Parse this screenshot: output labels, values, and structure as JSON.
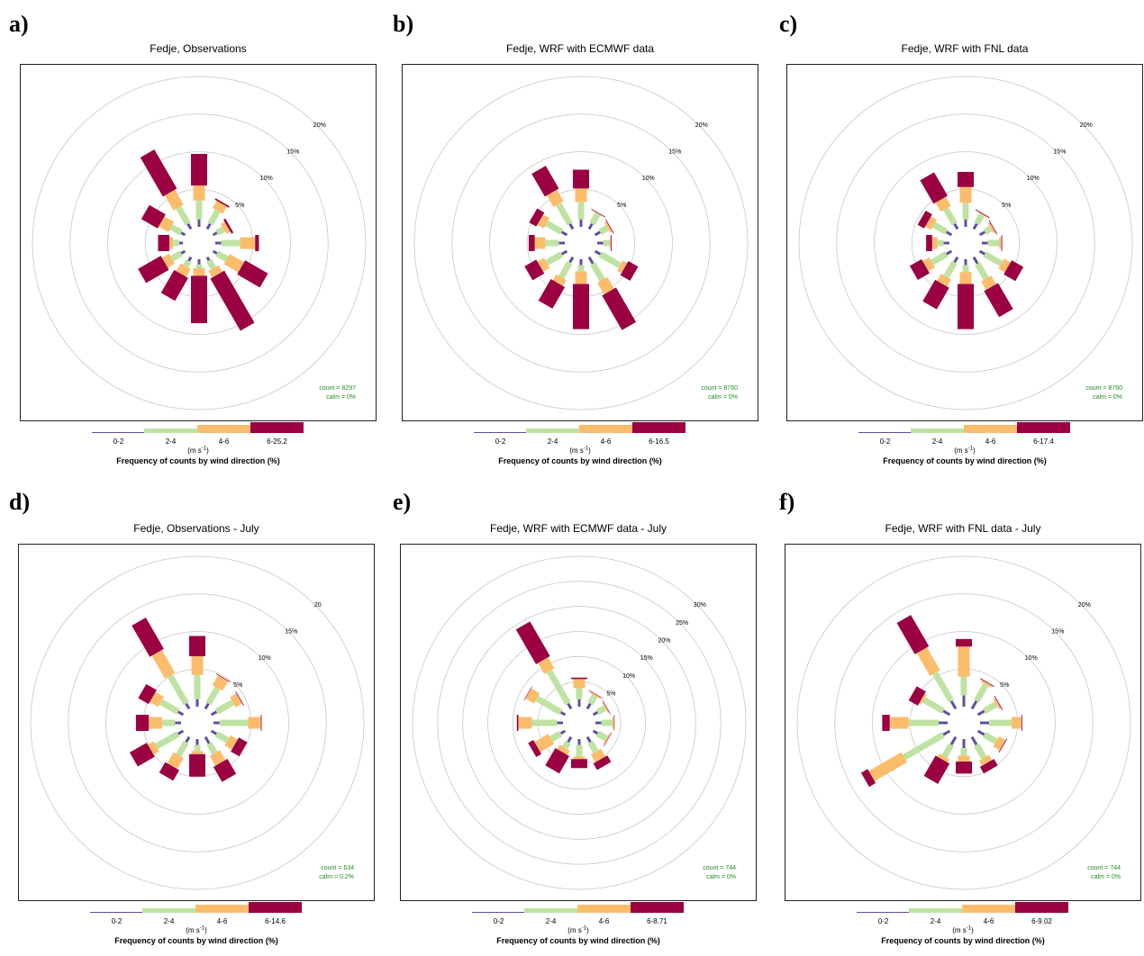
{
  "colors": {
    "band1": "#5b50a0",
    "band2": "#bfe3a3",
    "band3": "#fbbd6c",
    "band4": "#9b0042",
    "ring": "#c8c8c8",
    "stats": "#228b22"
  },
  "chart_data": [
    {
      "type": "windrose",
      "panel_label": "a)",
      "title": "Fedje, Observations",
      "rings": [
        5,
        10,
        15,
        20
      ],
      "ring_labels": [
        "5%",
        "10%",
        "15%",
        "20%"
      ],
      "max_ring": 20,
      "directions_deg": [
        0,
        30,
        60,
        90,
        120,
        150,
        180,
        210,
        240,
        270,
        300,
        330
      ],
      "bands": [
        "0-2",
        "2-4",
        "4-6",
        "6-25.2"
      ],
      "series": [
        {
          "name": "0-2",
          "values": [
            1.0,
            0.8,
            0.6,
            0.8,
            0.6,
            0.5,
            0.7,
            0.6,
            0.6,
            0.5,
            0.6,
            0.8
          ]
        },
        {
          "name": "2-4",
          "values": [
            2.5,
            2.0,
            1.0,
            2.5,
            1.5,
            1.2,
            0.5,
            0.8,
            1.4,
            0.8,
            1.5,
            2.5
          ]
        },
        {
          "name": "4-6",
          "values": [
            2.0,
            1.1,
            0.6,
            2.0,
            2.2,
            1.0,
            1.0,
            1.2,
            1.1,
            0.5,
            1.5,
            2.3
          ]
        },
        {
          "name": "6-25.2",
          "values": [
            4.2,
            0.2,
            0.3,
            0.5,
            3.5,
            8.0,
            6.3,
            3.5,
            3.5,
            1.5,
            2.5,
            6.0
          ]
        }
      ],
      "count_label": "count = 8297",
      "calm_label": "calm = 0%",
      "unit_label": "(m s",
      "unit_sup": "-1",
      "unit_close": ")",
      "footer": "Frequency of counts by wind direction (%)"
    },
    {
      "type": "windrose",
      "panel_label": "b)",
      "title": "Fedje, WRF with ECMWF data",
      "rings": [
        5,
        10,
        15,
        20
      ],
      "ring_labels": [
        "5%",
        "10%",
        "15%",
        "20%"
      ],
      "max_ring": 20,
      "directions_deg": [
        0,
        30,
        60,
        90,
        120,
        150,
        180,
        210,
        240,
        270,
        300,
        330
      ],
      "bands": [
        "0-2",
        "2-4",
        "4-6",
        "6-16.5"
      ],
      "series": [
        {
          "name": "0-2",
          "values": [
            1.0,
            0.8,
            0.8,
            0.8,
            0.8,
            1.0,
            0.8,
            0.8,
            0.8,
            0.8,
            0.8,
            0.8
          ]
        },
        {
          "name": "2-4",
          "values": [
            2.3,
            1.5,
            1.1,
            0.9,
            3.0,
            2.5,
            0.8,
            2.3,
            2.3,
            1.8,
            2.3,
            3.0
          ]
        },
        {
          "name": "4-6",
          "values": [
            1.8,
            0.1,
            0.3,
            0.1,
            0.7,
            1.8,
            1.7,
            0.9,
            1.0,
            1.4,
            1.0,
            1.8
          ]
        },
        {
          "name": "6-16.5",
          "values": [
            2.5,
            0.1,
            0.1,
            0.1,
            1.5,
            5.3,
            6.0,
            3.3,
            1.8,
            0.8,
            1.1,
            3.5
          ]
        }
      ],
      "count_label": "count = 8760",
      "calm_label": "calm = 0%",
      "unit_label": "(m s",
      "unit_sup": "-1",
      "unit_close": ")",
      "footer": "Frequency of counts by wind direction (%)"
    },
    {
      "type": "windrose",
      "panel_label": "c)",
      "title": "Fedje, WRF with FNL data",
      "rings": [
        5,
        10,
        15,
        20
      ],
      "ring_labels": [
        "5%",
        "10%",
        "15%",
        "20%"
      ],
      "max_ring": 20,
      "directions_deg": [
        0,
        30,
        60,
        90,
        120,
        150,
        180,
        210,
        240,
        270,
        300,
        330
      ],
      "bands": [
        "0-2",
        "2-4",
        "4-6",
        "6-17.4"
      ],
      "series": [
        {
          "name": "0-2",
          "values": [
            1.0,
            0.8,
            0.8,
            0.8,
            0.8,
            1.0,
            0.8,
            0.8,
            0.8,
            0.8,
            0.8,
            0.8
          ]
        },
        {
          "name": "2-4",
          "values": [
            2.2,
            1.4,
            0.9,
            1.5,
            2.5,
            2.3,
            0.9,
            2.2,
            2.2,
            0.8,
            1.9,
            2.3
          ]
        },
        {
          "name": "4-6",
          "values": [
            2.1,
            0.1,
            0.3,
            0.3,
            1.0,
            1.3,
            1.6,
            1.1,
            1.0,
            0.7,
            0.9,
            1.4
          ]
        },
        {
          "name": "6-17.4",
          "values": [
            2.0,
            0.1,
            0.1,
            0.1,
            1.8,
            4.0,
            6.0,
            3.3,
            1.8,
            0.8,
            1.0,
            3.6
          ]
        }
      ],
      "count_label": "count = 8760",
      "calm_label": "calm = 0%",
      "unit_label": "(m s",
      "unit_sup": "-1",
      "unit_close": ")",
      "footer": "Frequency of counts by wind direction (%)"
    },
    {
      "type": "windrose",
      "panel_label": "d)",
      "title": "Fedje, Observations - July",
      "rings": [
        5,
        10,
        15,
        20
      ],
      "ring_labels": [
        "5%",
        "10%",
        "15%",
        "20"
      ],
      "max_ring": 20,
      "directions_deg": [
        0,
        30,
        60,
        90,
        120,
        150,
        180,
        210,
        240,
        270,
        300,
        330
      ],
      "bands": [
        "0-2",
        "2-4",
        "4-6",
        "6-14.6"
      ],
      "series": [
        {
          "name": "0-2",
          "values": [
            1.0,
            0.8,
            0.8,
            0.8,
            0.8,
            1.0,
            0.8,
            0.8,
            0.8,
            0.8,
            0.8,
            0.8
          ]
        },
        {
          "name": "2-4",
          "values": [
            3.2,
            2.4,
            2.5,
            3.8,
            1.7,
            1.5,
            0.8,
            2.0,
            3.3,
            1.7,
            2.6,
            4.3
          ]
        },
        {
          "name": "4-6",
          "values": [
            2.5,
            1.5,
            1.0,
            1.7,
            1.1,
            1.5,
            0.4,
            1.7,
            0.9,
            1.8,
            1.3,
            3.5
          ]
        },
        {
          "name": "6-14.6",
          "values": [
            2.7,
            0.1,
            0.1,
            0.1,
            1.3,
            2.3,
            3.0,
            1.6,
            2.6,
            1.7,
            1.6,
            4.8
          ]
        }
      ],
      "count_label": "count = 634",
      "calm_label": "calm = 0.2%",
      "unit_label": "(m s",
      "unit_sup": "-1",
      "unit_close": ")",
      "footer": "Frequency of counts by wind direction (%)"
    },
    {
      "type": "windrose",
      "panel_label": "e)",
      "title": "Fedje, WRF with ECMWF data - July",
      "rings": [
        5,
        10,
        15,
        20,
        25,
        30
      ],
      "ring_labels": [
        "5%",
        "10%",
        "15%",
        "20%",
        "25%",
        "30%"
      ],
      "max_ring": 30,
      "directions_deg": [
        0,
        30,
        60,
        90,
        120,
        150,
        180,
        210,
        240,
        270,
        300,
        330
      ],
      "bands": [
        "0-2",
        "2-4",
        "4-6",
        "6-8.71"
      ],
      "series": [
        {
          "name": "0-2",
          "values": [
            1.5,
            1.2,
            1.0,
            1.2,
            1.0,
            1.2,
            1.2,
            1.2,
            1.0,
            1.2,
            1.0,
            1.2
          ]
        },
        {
          "name": "2-4",
          "values": [
            2.2,
            1.8,
            1.7,
            2.2,
            2.0,
            2.2,
            2.3,
            1.3,
            2.2,
            5.0,
            5.5,
            7.5
          ]
        },
        {
          "name": "4-6",
          "values": [
            1.8,
            0.3,
            0.3,
            0.3,
            0.3,
            1.8,
            0.5,
            1.0,
            3.2,
            2.7,
            2.0,
            2.5
          ]
        },
        {
          "name": "6-8.71",
          "values": [
            0.3,
            0.1,
            0.1,
            0.1,
            0.1,
            1.5,
            1.8,
            4.0,
            1.2,
            0.3,
            0.1,
            8.0
          ]
        }
      ],
      "count_label": "count = 744",
      "calm_label": "calm = 0%",
      "unit_label": "(m s",
      "unit_sup": "-1",
      "unit_close": ")",
      "footer": "Frequency of counts by wind direction (%)"
    },
    {
      "type": "windrose",
      "panel_label": "f)",
      "title": "Fedje, WRF with FNL data - July",
      "rings": [
        5,
        10,
        15,
        20
      ],
      "ring_labels": [
        "5%",
        "10%",
        "15%",
        "20%"
      ],
      "max_ring": 20,
      "directions_deg": [
        0,
        30,
        60,
        90,
        120,
        150,
        180,
        210,
        240,
        270,
        300,
        330
      ],
      "bands": [
        "0-2",
        "2-4",
        "4-6",
        "6-9.02"
      ],
      "series": [
        {
          "name": "0-2",
          "values": [
            1.5,
            1.2,
            1.0,
            1.2,
            1.0,
            1.2,
            1.2,
            1.2,
            1.0,
            1.2,
            1.0,
            1.2
          ]
        },
        {
          "name": "2-4",
          "values": [
            2.5,
            2.5,
            1.8,
            3.0,
            1.8,
            2.0,
            1.0,
            1.8,
            6.0,
            4.0,
            3.0,
            4.3
          ]
        },
        {
          "name": "4-6",
          "values": [
            4.0,
            0.3,
            0.3,
            1.3,
            1.0,
            0.8,
            0.8,
            0.5,
            5.0,
            2.5,
            0.3,
            3.5
          ]
        },
        {
          "name": "6-9.02",
          "values": [
            1.0,
            0.1,
            0.1,
            0.1,
            0.1,
            1.0,
            1.6,
            3.1,
            1.0,
            1.0,
            1.4,
            4.8
          ]
        }
      ],
      "count_label": "count = 744",
      "calm_label": "calm = 0%",
      "unit_label": "(m s",
      "unit_sup": "-1",
      "unit_close": ")",
      "footer": "Frequency of counts by wind direction (%)"
    }
  ]
}
